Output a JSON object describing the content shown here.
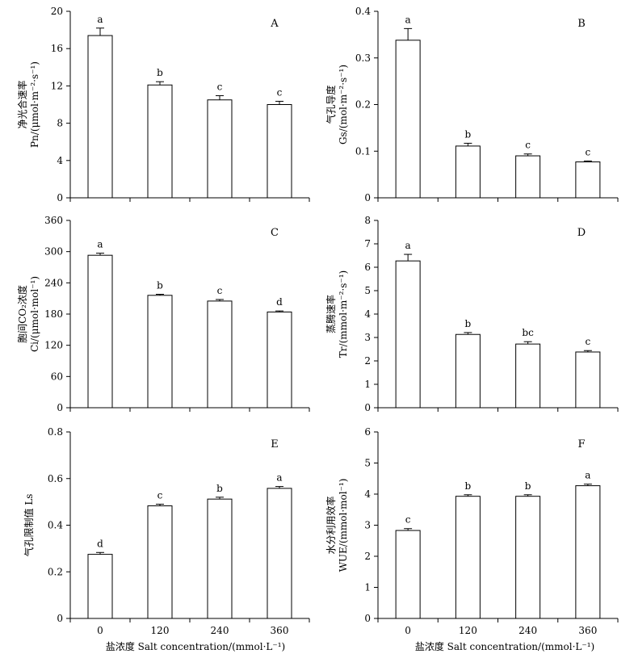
{
  "x_caption": "盐浓度 Salt concentration/(mmol·L⁻¹)",
  "chart_data": [
    {
      "panel": "A",
      "type": "bar",
      "ylabel_lines": [
        "净光合速率",
        "Pn/(μmol·m⁻²·s⁻¹)"
      ],
      "categories": [
        "0",
        "120",
        "240",
        "360"
      ],
      "values": [
        17.4,
        12.1,
        10.5,
        10.0
      ],
      "errors": [
        0.8,
        0.35,
        0.45,
        0.35
      ],
      "letters": [
        "a",
        "b",
        "c",
        "c"
      ],
      "ylim": [
        0,
        20
      ],
      "yticks": [
        0,
        4,
        8,
        12,
        16,
        20
      ],
      "ytick_labels": [
        "0",
        "4",
        "8",
        "12",
        "16",
        "20"
      ]
    },
    {
      "panel": "B",
      "type": "bar",
      "ylabel_lines": [
        "气孔导度",
        "Gs/(mol·m⁻²·s⁻¹)"
      ],
      "categories": [
        "0",
        "120",
        "240",
        "360"
      ],
      "values": [
        0.338,
        0.111,
        0.09,
        0.077
      ],
      "errors": [
        0.025,
        0.006,
        0.004,
        0.002
      ],
      "letters": [
        "a",
        "b",
        "c",
        "c"
      ],
      "ylim": [
        0,
        0.4
      ],
      "yticks": [
        0,
        0.1,
        0.2,
        0.3,
        0.4
      ],
      "ytick_labels": [
        "0",
        "0.1",
        "0.2",
        "0.3",
        "0.4"
      ]
    },
    {
      "panel": "C",
      "type": "bar",
      "ylabel_lines": [
        "胞间CO₂浓度",
        "Ci/(μmol·mol⁻¹)"
      ],
      "categories": [
        "0",
        "120",
        "240",
        "360"
      ],
      "values": [
        293,
        216,
        205,
        184
      ],
      "errors": [
        4,
        2,
        3,
        2
      ],
      "letters": [
        "a",
        "b",
        "c",
        "d"
      ],
      "ylim": [
        0,
        360
      ],
      "yticks": [
        0,
        60,
        120,
        180,
        240,
        300,
        360
      ],
      "ytick_labels": [
        "0",
        "60",
        "120",
        "180",
        "240",
        "300",
        "360"
      ]
    },
    {
      "panel": "D",
      "type": "bar",
      "ylabel_lines": [
        "蒸腾速率",
        "Tr/(mmol·m⁻²·s⁻¹)"
      ],
      "categories": [
        "0",
        "120",
        "240",
        "360"
      ],
      "values": [
        6.27,
        3.13,
        2.72,
        2.38
      ],
      "errors": [
        0.28,
        0.08,
        0.1,
        0.06
      ],
      "letters": [
        "a",
        "b",
        "bc",
        "c"
      ],
      "ylim": [
        0,
        8
      ],
      "yticks": [
        0,
        1,
        2,
        3,
        4,
        5,
        6,
        7,
        8
      ],
      "ytick_labels": [
        "0",
        "1",
        "2",
        "3",
        "4",
        "5",
        "6",
        "7",
        "8"
      ]
    },
    {
      "panel": "E",
      "type": "bar",
      "ylabel_lines": [
        "气孔限制值 Ls"
      ],
      "categories": [
        "0",
        "120",
        "240",
        "360"
      ],
      "values": [
        0.275,
        0.483,
        0.512,
        0.558
      ],
      "errors": [
        0.008,
        0.007,
        0.008,
        0.008
      ],
      "letters": [
        "d",
        "c",
        "b",
        "a"
      ],
      "ylim": [
        0,
        0.8
      ],
      "yticks": [
        0,
        0.2,
        0.4,
        0.6,
        0.8
      ],
      "ytick_labels": [
        "0",
        "0.2",
        "0.4",
        "0.6",
        "0.8"
      ]
    },
    {
      "panel": "F",
      "type": "bar",
      "ylabel_lines": [
        "水分利用效率",
        "WUE/(mmol·mol⁻¹)"
      ],
      "categories": [
        "0",
        "120",
        "240",
        "360"
      ],
      "values": [
        2.83,
        3.93,
        3.93,
        4.27
      ],
      "errors": [
        0.06,
        0.05,
        0.05,
        0.05
      ],
      "letters": [
        "c",
        "b",
        "b",
        "a"
      ],
      "ylim": [
        0,
        6
      ],
      "yticks": [
        0,
        1,
        2,
        3,
        4,
        5,
        6
      ],
      "ytick_labels": [
        "0",
        "1",
        "2",
        "3",
        "4",
        "5",
        "6"
      ]
    }
  ]
}
